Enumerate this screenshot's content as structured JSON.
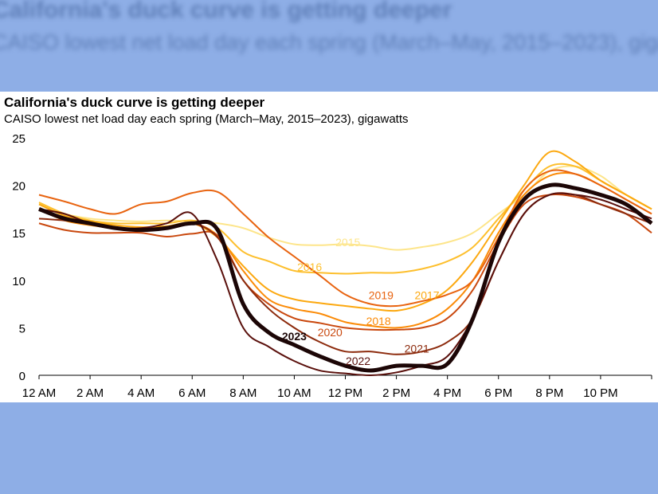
{
  "chart_data": {
    "type": "line",
    "title": "California's duck curve is getting deeper",
    "subtitle": "CAISO lowest net load day each spring (March–May, 2015–2023), gigawatts",
    "xlabel": "",
    "ylabel": "",
    "ylim": [
      0,
      25
    ],
    "yticks": [
      "0",
      "5",
      "10",
      "15",
      "20",
      "25"
    ],
    "xticks": [
      "12 AM",
      "2 AM",
      "4 AM",
      "6 AM",
      "8 AM",
      "10 AM",
      "12 PM",
      "2 PM",
      "4 PM",
      "6 PM",
      "8 PM",
      "10 PM"
    ],
    "x_hours": [
      0,
      1,
      2,
      3,
      4,
      5,
      6,
      7,
      8,
      9,
      10,
      11,
      12,
      13,
      14,
      15,
      16,
      17,
      18,
      19,
      20,
      21,
      22,
      23,
      24
    ],
    "grid": false,
    "legend": "inline labels",
    "series": [
      {
        "name": "2015",
        "color": "#fde58a",
        "values": [
          18,
          17,
          16.5,
          16.3,
          16.2,
          16.3,
          16.2,
          16,
          15.5,
          14.5,
          13.8,
          13.7,
          13.8,
          13.6,
          13.2,
          13.5,
          14,
          15,
          17,
          19,
          21.5,
          22,
          21,
          19,
          17.5
        ]
      },
      {
        "name": "2016",
        "color": "#fdbf2d",
        "values": [
          18.2,
          17,
          16.3,
          16,
          16,
          16,
          16.3,
          15.5,
          13,
          12,
          11,
          10.8,
          10.7,
          10.8,
          10.8,
          11.2,
          12,
          13.5,
          16.5,
          19.5,
          22,
          22,
          20.5,
          19,
          17.5
        ]
      },
      {
        "name": "2017",
        "color": "#fca80f",
        "values": [
          18,
          16.8,
          16.2,
          15.8,
          15.6,
          15.7,
          16,
          14.5,
          11.5,
          9,
          8,
          7.6,
          7.3,
          7,
          6.8,
          7.5,
          9,
          12,
          16,
          20,
          23.5,
          22.5,
          20.5,
          19,
          17.5
        ]
      },
      {
        "name": "2018",
        "color": "#fb8b08",
        "values": [
          17.5,
          16.3,
          15.8,
          15.5,
          15.5,
          15.5,
          16,
          14.7,
          11,
          8,
          7,
          6.5,
          5.6,
          5.2,
          5,
          5.5,
          7,
          10,
          15,
          19,
          21,
          21.2,
          20,
          18.5,
          17
        ]
      },
      {
        "name": "2019",
        "color": "#e8630f",
        "values": [
          19,
          18.3,
          17.5,
          17,
          18,
          18.3,
          19.2,
          19.3,
          17,
          14.5,
          12.5,
          10.5,
          8.5,
          7.5,
          7.3,
          7.8,
          8.5,
          10,
          14.5,
          19.5,
          21.5,
          21.2,
          20,
          18.5,
          17
        ]
      },
      {
        "name": "2020",
        "color": "#c9480e",
        "values": [
          16,
          15.3,
          15,
          15,
          15,
          14.6,
          14.9,
          14.7,
          10,
          7.5,
          6,
          5.5,
          5,
          4.8,
          4.8,
          5,
          6,
          9,
          14,
          18,
          19,
          18.8,
          18,
          17,
          15
        ]
      },
      {
        "name": "2021",
        "color": "#8c2a0c",
        "values": [
          16.5,
          16.3,
          16,
          15.5,
          15.3,
          15.5,
          16,
          14.5,
          10,
          7,
          5,
          3.5,
          2.5,
          2.5,
          2.2,
          2.5,
          3.5,
          6,
          12,
          17,
          19,
          19,
          18,
          17,
          16
        ]
      },
      {
        "name": "2022",
        "color": "#5a100c",
        "values": [
          17.5,
          17,
          16,
          15.5,
          15.5,
          16,
          17,
          12,
          5,
          3,
          1.5,
          0.5,
          0.2,
          0,
          0.3,
          1,
          2,
          6,
          12,
          17,
          19,
          19,
          18.5,
          17.5,
          16.5
        ]
      },
      {
        "name": "2023",
        "color": "#1c0606",
        "values": [
          17.5,
          16.5,
          16,
          15.5,
          15.3,
          15.5,
          16,
          15.3,
          7.5,
          4.5,
          3.2,
          2,
          1,
          0.5,
          1,
          1,
          1.2,
          6,
          14,
          18.5,
          20,
          19.7,
          19,
          18,
          16
        ]
      }
    ]
  }
}
